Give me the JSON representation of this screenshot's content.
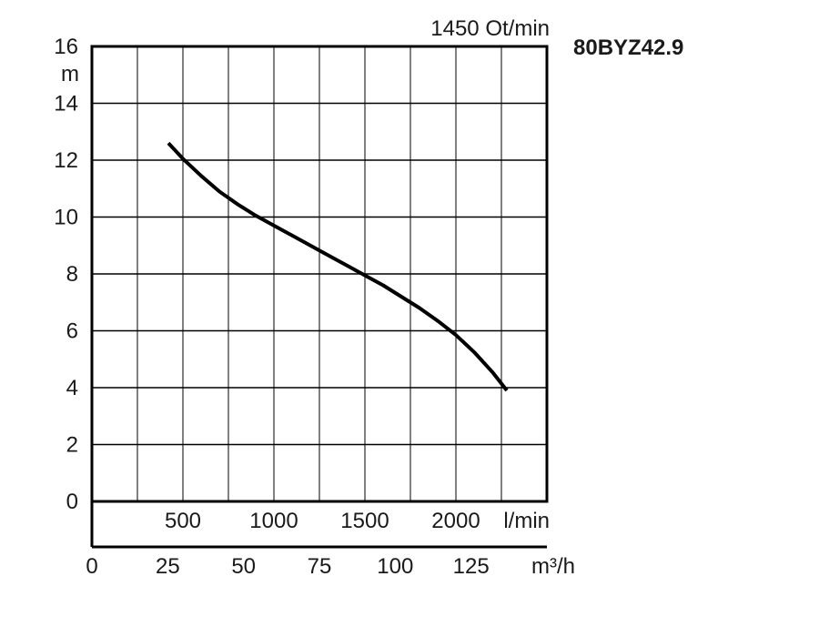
{
  "chart_data": {
    "type": "line",
    "title": "80BYZ42.9",
    "subtitle": "1450 Ot/min",
    "ylabel": "m",
    "xlabel": "l/min",
    "x2label": "m³/h",
    "ylim": [
      0,
      16
    ],
    "y_ticks": [
      "0",
      "2",
      "4",
      "6",
      "8",
      "10",
      "12",
      "14",
      "16"
    ],
    "x_ticks": [
      "500",
      "1000",
      "1500",
      "2000"
    ],
    "x2_ticks": [
      "0",
      "25",
      "50",
      "75",
      "100",
      "125"
    ],
    "xlim": [
      0,
      2500
    ],
    "x2lim": [
      0,
      150
    ],
    "grid": true,
    "series": [
      {
        "x": [
          420,
          500,
          600,
          700,
          800,
          900,
          1000,
          1100,
          1200,
          1300,
          1400,
          1500,
          1600,
          1700,
          1800,
          1900,
          2000,
          2100,
          2200,
          2280
        ],
        "y": [
          12.6,
          12.05,
          11.45,
          10.9,
          10.45,
          10.05,
          9.7,
          9.35,
          9.0,
          8.65,
          8.3,
          7.95,
          7.6,
          7.2,
          6.8,
          6.35,
          5.85,
          5.25,
          4.55,
          3.9
        ]
      }
    ]
  }
}
